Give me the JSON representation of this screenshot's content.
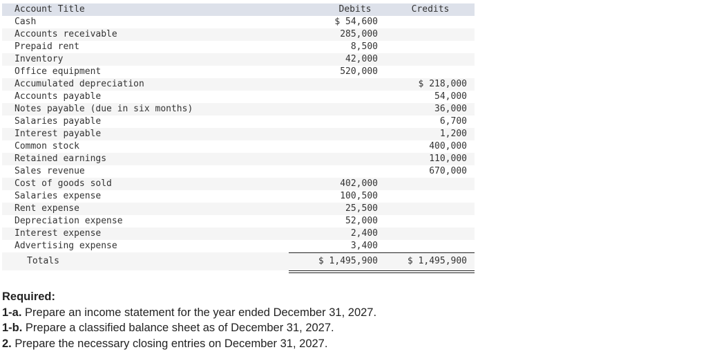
{
  "table": {
    "headers": {
      "account_title": "Account Title",
      "debits": "Debits",
      "credits": "Credits"
    },
    "rows": [
      {
        "account": "Cash",
        "debit": "$ 54,600",
        "credit": ""
      },
      {
        "account": "Accounts receivable",
        "debit": "285,000",
        "credit": ""
      },
      {
        "account": "Prepaid rent",
        "debit": "8,500",
        "credit": ""
      },
      {
        "account": "Inventory",
        "debit": "42,000",
        "credit": ""
      },
      {
        "account": "Office equipment",
        "debit": "520,000",
        "credit": ""
      },
      {
        "account": "Accumulated depreciation",
        "debit": "",
        "credit": "$ 218,000"
      },
      {
        "account": "Accounts payable",
        "debit": "",
        "credit": "54,000"
      },
      {
        "account": "Notes payable (due in six months)",
        "debit": "",
        "credit": "36,000"
      },
      {
        "account": "Salaries payable",
        "debit": "",
        "credit": "6,700"
      },
      {
        "account": "Interest payable",
        "debit": "",
        "credit": "1,200"
      },
      {
        "account": "Common stock",
        "debit": "",
        "credit": "400,000"
      },
      {
        "account": "Retained earnings",
        "debit": "",
        "credit": "110,000"
      },
      {
        "account": "Sales revenue",
        "debit": "",
        "credit": "670,000"
      },
      {
        "account": "Cost of goods sold",
        "debit": "402,000",
        "credit": ""
      },
      {
        "account": "Salaries expense",
        "debit": "100,500",
        "credit": ""
      },
      {
        "account": "Rent expense",
        "debit": "25,500",
        "credit": ""
      },
      {
        "account": "Depreciation expense",
        "debit": "52,000",
        "credit": ""
      },
      {
        "account": "Interest expense",
        "debit": "2,400",
        "credit": ""
      },
      {
        "account": "Advertising expense",
        "debit": "3,400",
        "credit": ""
      }
    ],
    "totals": {
      "label": "Totals",
      "debit": "$ 1,495,900",
      "credit": "$ 1,495,900"
    }
  },
  "required": {
    "heading": "Required:",
    "items": [
      {
        "num": "1-a.",
        "text": " Prepare an income statement for the year ended December 31, 2027."
      },
      {
        "num": "1-b.",
        "text": " Prepare a classified balance sheet as of December 31, 2027."
      },
      {
        "num": "2.",
        "text": " Prepare the necessary closing entries on December 31, 2027."
      }
    ]
  },
  "colors": {
    "header_bg": "#dde1ea",
    "alt_row_bg": "#f5f5f5",
    "text": "#333333"
  }
}
